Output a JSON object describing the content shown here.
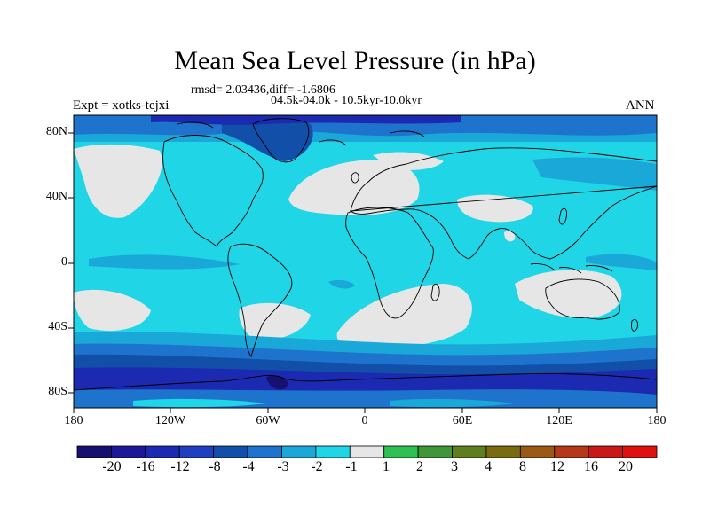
{
  "title": "Mean Sea Level Pressure (in hPa)",
  "stats": "rmsd= 2.03436,diff= -1.6806",
  "subtitle": "04.5k-04.0k - 10.5kyr-10.0kyr",
  "experiment": "Expt = xotks-tejxi",
  "season": "ANN",
  "lat_labels": [
    "80N",
    "40N",
    "0",
    "40S",
    "80S"
  ],
  "lon_labels": [
    "180",
    "120W",
    "60W",
    "0",
    "60E",
    "120E",
    "180"
  ],
  "colorbar": {
    "labels": [
      "-20",
      "-16",
      "-12",
      "-8",
      "-4",
      "-3",
      "-2",
      "-1",
      "1",
      "2",
      "3",
      "4",
      "8",
      "12",
      "16",
      "20"
    ],
    "colors": [
      "#16106e",
      "#1d1896",
      "#1b2ab1",
      "#1e3fc0",
      "#124fa8",
      "#1e74cc",
      "#1aa8d8",
      "#20d6e6",
      "#e6e6e6",
      "#2ec050",
      "#3f9638",
      "#5f7f1e",
      "#7a6a10",
      "#9a5a16",
      "#b53818",
      "#c81818",
      "#e01010"
    ]
  },
  "colors": {
    "cyan": "#20d6e6",
    "sky": "#1aa8d8",
    "blue": "#1e74cc",
    "deep": "#124fa8",
    "navy": "#1b2ab1",
    "grey": "#e6e6e6"
  }
}
